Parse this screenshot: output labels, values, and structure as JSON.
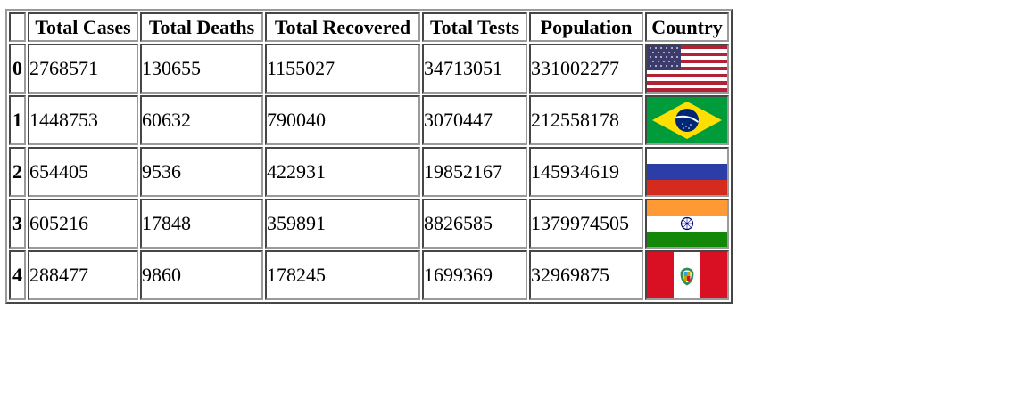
{
  "table": {
    "headers": {
      "index": "",
      "total_cases": "Total Cases",
      "total_deaths": "Total Deaths",
      "total_recovered": "Total Recovered",
      "total_tests": "Total Tests",
      "population": "Population",
      "country": "Country"
    },
    "rows": [
      {
        "index": "0",
        "total_cases": "2768571",
        "total_deaths": "130655",
        "total_recovered": "1155027",
        "total_tests": "34713051",
        "population": "331002277",
        "country_flag": "us-flag-icon"
      },
      {
        "index": "1",
        "total_cases": "1448753",
        "total_deaths": "60632",
        "total_recovered": "790040",
        "total_tests": "3070447",
        "population": "212558178",
        "country_flag": "brazil-flag-icon"
      },
      {
        "index": "2",
        "total_cases": "654405",
        "total_deaths": "9536",
        "total_recovered": "422931",
        "total_tests": "19852167",
        "population": "145934619",
        "country_flag": "russia-flag-icon"
      },
      {
        "index": "3",
        "total_cases": "605216",
        "total_deaths": "17848",
        "total_recovered": "359891",
        "total_tests": "8826585",
        "population": "1379974505",
        "country_flag": "india-flag-icon"
      },
      {
        "index": "4",
        "total_cases": "288477",
        "total_deaths": "9860",
        "total_recovered": "178245",
        "total_tests": "1699369",
        "population": "32969875",
        "country_flag": "peru-flag-icon"
      }
    ]
  },
  "colors": {
    "border": "#9a9a9a",
    "text": "#000000",
    "background": "#ffffff"
  }
}
